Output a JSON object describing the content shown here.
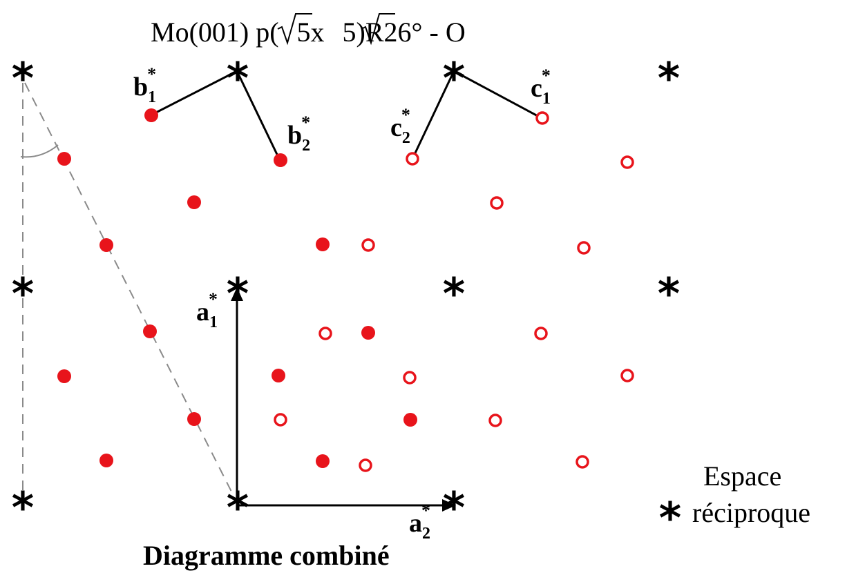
{
  "title": {
    "prefix": "Mo(001) p(",
    "sqrt1": "5",
    "mid": "x",
    "sqrt2": "5",
    "suffix": ")R26° - O"
  },
  "vectors": {
    "a1": {
      "base": "a",
      "sub": "1",
      "sup": "*"
    },
    "a2": {
      "base": "a",
      "sub": "2",
      "sup": "*"
    },
    "b1": {
      "base": "b",
      "sub": "1",
      "sup": "*"
    },
    "b2": {
      "base": "b",
      "sub": "2",
      "sup": "*"
    },
    "c1": {
      "base": "c",
      "sub": "1",
      "sup": "*"
    },
    "c2": {
      "base": "c",
      "sub": "2",
      "sup": "*"
    }
  },
  "legend": {
    "symbol": "*",
    "line1": "Espace",
    "line2": "réciproque"
  },
  "caption": "Diagramme combiné",
  "colors": {
    "spot": "#e8141b",
    "line": "#000000",
    "dashed": "#8a8a8a"
  },
  "symbols": {
    "reciprocal_lattice": "asterisk",
    "domain_b": "filled-red-circle",
    "domain_c": "open-red-circle"
  }
}
